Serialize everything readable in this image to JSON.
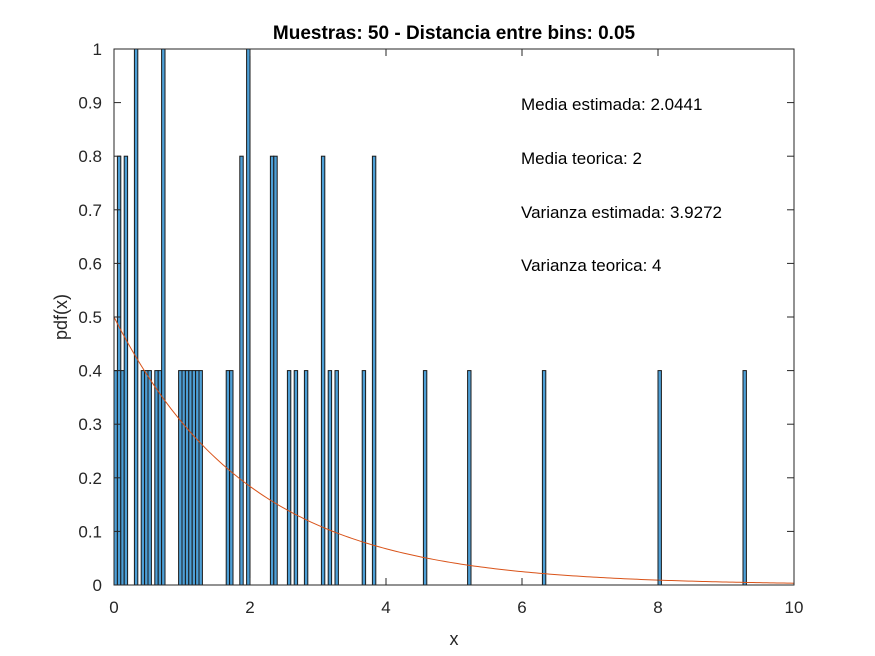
{
  "chart_data": {
    "type": "bar",
    "title": "Muestras: 50 -  Distancia entre bins: 0.05",
    "xlabel": "x",
    "ylabel": "pdf(x)",
    "xlim": [
      0,
      10
    ],
    "ylim": [
      0,
      1
    ],
    "xticks": [
      0,
      2,
      4,
      6,
      8,
      10
    ],
    "yticks": [
      0,
      0.1,
      0.2,
      0.3,
      0.4,
      0.5,
      0.6,
      0.7,
      0.8,
      0.9,
      1
    ],
    "xtick_labels": [
      "0",
      "2",
      "4",
      "6",
      "8",
      "10"
    ],
    "ytick_labels": [
      "0",
      "0.1",
      "0.2",
      "0.3",
      "0.4",
      "0.5",
      "0.6",
      "0.7",
      "0.8",
      "0.9",
      "1"
    ],
    "bin_width": 0.05,
    "grid": false,
    "bar_color": "#4d9fd6",
    "edge_color": "#1a1a1a",
    "curve_color": "#d95319",
    "series": [
      {
        "type": "bar",
        "x": [
          0.025,
          0.075,
          0.125,
          0.175,
          0.325,
          0.425,
          0.475,
          0.525,
          0.625,
          0.675,
          0.725,
          0.975,
          1.025,
          1.075,
          1.125,
          1.175,
          1.225,
          1.275,
          1.675,
          1.725,
          1.875,
          1.975,
          2.325,
          2.375,
          2.575,
          2.675,
          2.825,
          3.075,
          3.175,
          3.275,
          3.675,
          3.825,
          4.575,
          5.225,
          6.325,
          8.025,
          9.275
        ],
        "values": [
          0.4,
          0.8,
          0.4,
          0.8,
          1.0,
          0.4,
          0.4,
          0.4,
          0.4,
          0.4,
          1.0,
          0.4,
          0.4,
          0.4,
          0.4,
          0.4,
          0.4,
          0.4,
          0.4,
          0.4,
          0.8,
          1.0,
          0.8,
          0.8,
          0.4,
          0.4,
          0.4,
          0.8,
          0.4,
          0.4,
          0.4,
          0.8,
          0.4,
          0.4,
          0.4,
          0.4,
          0.4
        ]
      },
      {
        "type": "line",
        "function": "0.5*exp(-x/2)",
        "x": [
          0,
          0.5,
          1,
          1.5,
          2,
          2.5,
          3,
          3.5,
          4,
          4.5,
          5,
          5.5,
          6,
          6.5,
          7,
          7.5,
          8,
          8.5,
          9,
          9.5,
          10
        ],
        "values": [
          0.5,
          0.3894,
          0.3033,
          0.2362,
          0.1839,
          0.1433,
          0.1116,
          0.0869,
          0.0677,
          0.0527,
          0.041,
          0.032,
          0.0249,
          0.0194,
          0.0151,
          0.0118,
          0.0092,
          0.0071,
          0.0056,
          0.0043,
          0.0034
        ]
      }
    ],
    "annotations": [
      "Media estimada: 2.0441",
      "Media teorica: 2",
      "Varianza estimada: 3.9272",
      "Varianza teorica: 4"
    ]
  }
}
